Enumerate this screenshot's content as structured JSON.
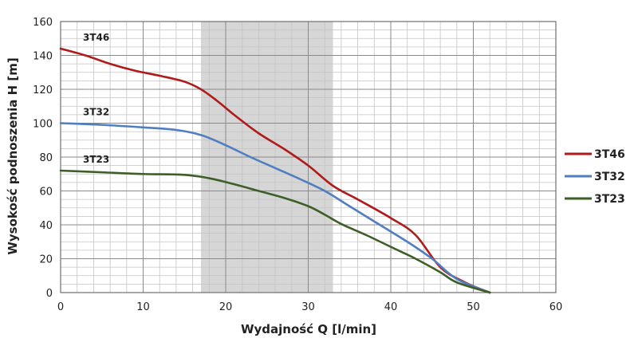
{
  "chart_data": {
    "type": "line",
    "xlabel": "Wydajność Q [l/min]",
    "ylabel": "Wysokość podnoszenia H [m]",
    "xlim": [
      0,
      60
    ],
    "ylim": [
      0,
      160
    ],
    "x_ticks": [
      0,
      10,
      20,
      30,
      40,
      50,
      60
    ],
    "y_ticks": [
      0,
      20,
      40,
      60,
      80,
      100,
      120,
      140,
      160
    ],
    "x_tick_labels": [
      "0",
      "10",
      "20",
      "30",
      "40",
      "50",
      "60"
    ],
    "y_tick_labels": [
      "0",
      "20",
      "40",
      "60",
      "80",
      "100",
      "120",
      "140",
      "160"
    ],
    "grid": true,
    "legend_position": "right",
    "highlight_range": {
      "x": [
        17,
        33
      ],
      "color": "#d6d6d6"
    },
    "series": [
      {
        "name": "3T46",
        "color": "#b01a1a",
        "points": [
          [
            0,
            144
          ],
          [
            3,
            140
          ],
          [
            6,
            135
          ],
          [
            9,
            131
          ],
          [
            12,
            128
          ],
          [
            15,
            124.5
          ],
          [
            17,
            120
          ],
          [
            19,
            113
          ],
          [
            21,
            105
          ],
          [
            24,
            94
          ],
          [
            27,
            85
          ],
          [
            30,
            75
          ],
          [
            33,
            63
          ],
          [
            36,
            55
          ],
          [
            40,
            44
          ],
          [
            43,
            34
          ],
          [
            46,
            15
          ],
          [
            49,
            6
          ],
          [
            52,
            0
          ]
        ]
      },
      {
        "name": "3T32",
        "color": "#4f7ec1",
        "points": [
          [
            0,
            100
          ],
          [
            5,
            99
          ],
          [
            10,
            97.5
          ],
          [
            14,
            96
          ],
          [
            17,
            93
          ],
          [
            20,
            87
          ],
          [
            23,
            80
          ],
          [
            26,
            73.5
          ],
          [
            29,
            67
          ],
          [
            32,
            60
          ],
          [
            35,
            51
          ],
          [
            38,
            42
          ],
          [
            42,
            30
          ],
          [
            45,
            20
          ],
          [
            48,
            8
          ],
          [
            52,
            0
          ]
        ]
      },
      {
        "name": "3T23",
        "color": "#3e5e27",
        "points": [
          [
            0,
            72
          ],
          [
            5,
            71
          ],
          [
            10,
            70
          ],
          [
            15,
            69.5
          ],
          [
            18,
            67.5
          ],
          [
            21,
            64
          ],
          [
            24,
            60
          ],
          [
            27,
            56
          ],
          [
            30,
            51
          ],
          [
            32,
            46
          ],
          [
            34,
            40.5
          ],
          [
            37,
            34
          ],
          [
            40,
            27
          ],
          [
            43,
            20
          ],
          [
            46,
            12
          ],
          [
            48,
            6
          ],
          [
            52,
            0
          ]
        ]
      }
    ]
  }
}
